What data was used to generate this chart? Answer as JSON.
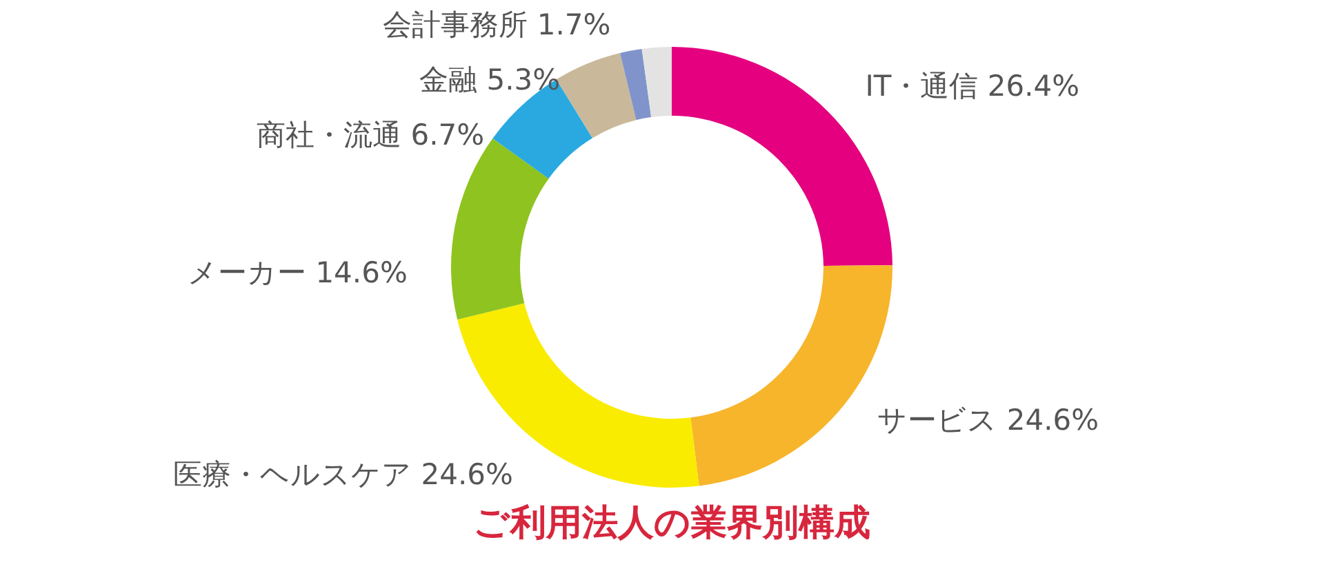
{
  "chart_data": {
    "type": "donut",
    "title": "ご利用法人の業界別構成",
    "categories": [
      "IT・通信",
      "サービス",
      "医療・ヘルスケア",
      "メーカー",
      "商社・流通",
      "金融",
      "会計事務所",
      null
    ],
    "values": [
      26.4,
      24.6,
      24.6,
      14.6,
      6.7,
      5.3,
      1.7,
      2.3
    ],
    "value_labels": [
      "26.4%",
      "24.6%",
      "24.6%",
      "14.6%",
      "6.7%",
      "5.3%",
      "1.7%",
      null
    ],
    "colors": [
      "#e4007f",
      "#f7b52c",
      "#f9ec00",
      "#8fc31f",
      "#29a9e0",
      "#c9b99a",
      "#8094cb",
      "#e3e3e3"
    ]
  }
}
